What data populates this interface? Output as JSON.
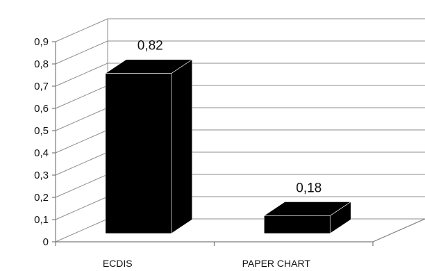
{
  "chart_data": {
    "type": "bar",
    "categories": [
      "ECDIS",
      "PAPER CHART"
    ],
    "values": [
      0.82,
      0.18
    ],
    "data_labels": [
      "0,82",
      "0,18"
    ],
    "ylim": [
      0,
      0.9
    ],
    "yticks": [
      "0",
      "0,1",
      "0,2",
      "0,3",
      "0,4",
      "0,5",
      "0,6",
      "0,7",
      "0,8",
      "0,9"
    ],
    "grid": true,
    "legend": "none",
    "bar_color": "#000000",
    "three_d": true
  }
}
